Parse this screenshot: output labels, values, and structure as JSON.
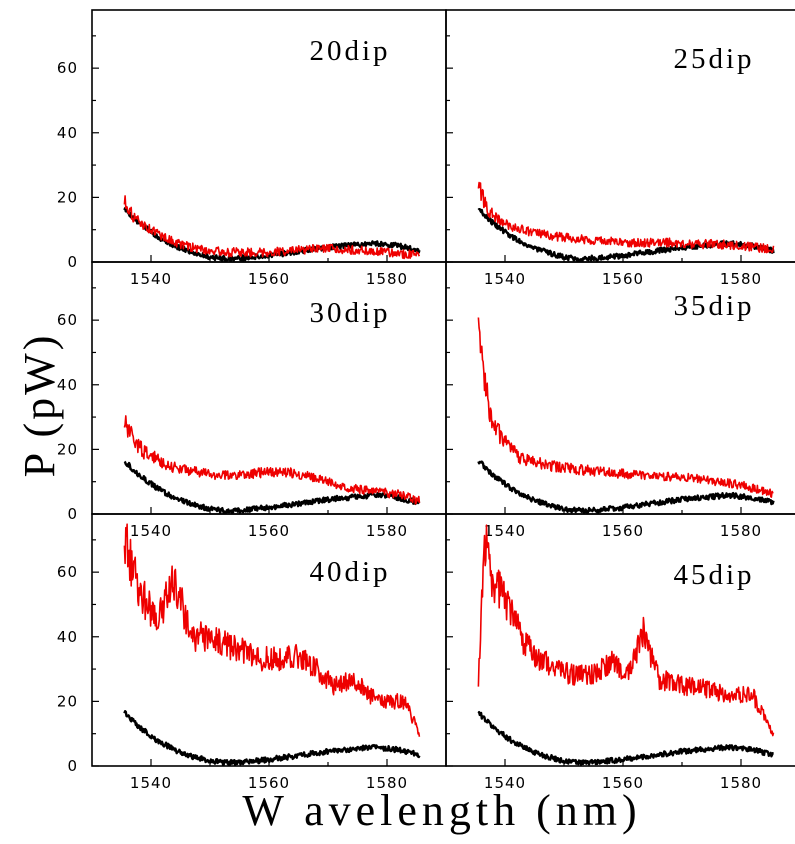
{
  "chart_data": {
    "type": "line",
    "layout": "3x2 panel grid",
    "xlabel": "W avelength (nm)",
    "ylabel": "P (pW)",
    "xlim": [
      1530,
      1590
    ],
    "ylim": [
      0,
      78
    ],
    "x_ticks": [
      1540,
      1560,
      1580
    ],
    "y_ticks": [
      0,
      20,
      40,
      60
    ],
    "grid": false,
    "colors": {
      "reference": "#000000",
      "measured": "#ee0000"
    },
    "panels": [
      {
        "label": "20dip",
        "series": [
          {
            "color": "#000000",
            "x": [
              1535.5,
              1538,
              1541,
              1544,
              1547,
              1550,
              1553,
              1556,
              1559,
              1562,
              1566,
              1570,
              1574,
              1578,
              1582,
              1585.5
            ],
            "y": [
              16.5,
              12,
              8,
              5,
              3,
              1.5,
              1,
              1.3,
              1.8,
              2.5,
              3.5,
              4.5,
              5.2,
              5.8,
              5,
              3.5
            ]
          },
          {
            "color": "#ee0000",
            "x": [
              1535.5,
              1537,
              1539,
              1541,
              1543,
              1545,
              1547,
              1550,
              1553,
              1556,
              1560,
              1564,
              1568,
              1572,
              1576,
              1580,
              1585.5
            ],
            "y": [
              19,
              14,
              11,
              9,
              7,
              5.5,
              4.5,
              3.5,
              3,
              3,
              3,
              3.5,
              4,
              4,
              3.5,
              3,
              2
            ]
          }
        ]
      },
      {
        "label": "25dip",
        "series": [
          {
            "color": "#000000",
            "x": [
              1535.5,
              1538,
              1541,
              1544,
              1547,
              1550,
              1553,
              1556,
              1559,
              1562,
              1566,
              1570,
              1574,
              1578,
              1582,
              1585.5
            ],
            "y": [
              16.5,
              12,
              8,
              5,
              3,
              1.5,
              1,
              1.3,
              1.8,
              2.5,
              3.5,
              4.5,
              5.2,
              5.8,
              5,
              3.5
            ]
          },
          {
            "color": "#ee0000",
            "x": [
              1535.5,
              1537,
              1539,
              1541,
              1543,
              1545,
              1548,
              1551,
              1554,
              1557,
              1560,
              1564,
              1568,
              1572,
              1576,
              1580,
              1585.5
            ],
            "y": [
              24,
              16,
              13,
              11,
              10,
              9,
              8,
              7.5,
              7,
              6.5,
              6,
              6,
              6,
              5.5,
              5.5,
              5,
              4
            ]
          }
        ]
      },
      {
        "label": "30dip",
        "series": [
          {
            "color": "#000000",
            "x": [
              1535.5,
              1538,
              1541,
              1544,
              1547,
              1550,
              1553,
              1556,
              1559,
              1562,
              1566,
              1570,
              1574,
              1578,
              1582,
              1585.5
            ],
            "y": [
              16.5,
              12,
              8,
              5,
              3,
              1.5,
              1,
              1.3,
              1.8,
              2.5,
              3.5,
              4.5,
              5.2,
              5.8,
              5,
              3.5
            ]
          },
          {
            "color": "#ee0000",
            "x": [
              1535.5,
              1537,
              1539,
              1541,
              1543,
              1545,
              1548,
              1551,
              1554,
              1557,
              1560,
              1563,
              1566,
              1570,
              1574,
              1578,
              1582,
              1585.5
            ],
            "y": [
              28,
              23,
              19,
              17,
              15,
              14,
              13,
              12,
              12,
              12.5,
              13,
              13,
              12,
              10,
              8,
              7,
              6,
              4
            ]
          }
        ]
      },
      {
        "label": "35dip",
        "series": [
          {
            "color": "#000000",
            "x": [
              1535.5,
              1538,
              1541,
              1544,
              1547,
              1550,
              1553,
              1556,
              1559,
              1562,
              1566,
              1570,
              1574,
              1578,
              1582,
              1585.5
            ],
            "y": [
              16.5,
              12,
              8,
              5,
              3,
              1.5,
              1,
              1.3,
              1.8,
              2.5,
              3.5,
              4.5,
              5.2,
              5.8,
              5,
              3.5
            ]
          },
          {
            "color": "#ee0000",
            "x": [
              1535.5,
              1536.5,
              1538,
              1540,
              1542,
              1545,
              1548,
              1551,
              1554,
              1557,
              1560,
              1564,
              1568,
              1572,
              1576,
              1580,
              1585.5
            ],
            "y": [
              63,
              40,
              28,
              22,
              18,
              16,
              15,
              14,
              13.5,
              13,
              12.5,
              12,
              11.5,
              11,
              10,
              9,
              6
            ]
          }
        ]
      },
      {
        "label": "40dip",
        "series": [
          {
            "color": "#000000",
            "x": [
              1535.5,
              1538,
              1541,
              1544,
              1547,
              1550,
              1553,
              1556,
              1559,
              1562,
              1566,
              1570,
              1574,
              1578,
              1582,
              1585.5
            ],
            "y": [
              16.5,
              12,
              8,
              5,
              3,
              1.5,
              1,
              1.3,
              1.8,
              2.5,
              3.5,
              4.5,
              5.2,
              5.8,
              5,
              3.5
            ]
          },
          {
            "color": "#ee0000",
            "x": [
              1535.5,
              1538,
              1541,
              1544,
              1547,
              1550,
              1553,
              1556,
              1559,
              1562,
              1565,
              1568,
              1571,
              1574,
              1577,
              1580,
              1583,
              1585.5
            ],
            "y": [
              70,
              55,
              45,
              57,
              40,
              40,
              37,
              35,
              33,
              33,
              34,
              30,
              25,
              27,
              22,
              20,
              20,
              10
            ]
          }
        ]
      },
      {
        "label": "45dip",
        "series": [
          {
            "color": "#000000",
            "x": [
              1535.5,
              1538,
              1541,
              1544,
              1547,
              1550,
              1553,
              1556,
              1559,
              1562,
              1566,
              1570,
              1574,
              1578,
              1582,
              1585.5
            ],
            "y": [
              16.5,
              12,
              8,
              5,
              3,
              1.5,
              1,
              1.3,
              1.8,
              2.5,
              3.5,
              4.5,
              5.2,
              5.8,
              5,
              3.5
            ]
          },
          {
            "color": "#ee0000",
            "x": [
              1535.5,
              1536.5,
              1537.5,
              1539,
              1541,
              1543,
              1546,
              1549,
              1552,
              1555,
              1558,
              1561,
              1563.5,
              1566,
              1570,
              1574,
              1578,
              1582,
              1585.5
            ],
            "y": [
              25,
              72,
              58,
              55,
              48,
              38,
              33,
              30,
              28,
              28,
              32,
              28,
              42,
              27,
              25,
              24,
              22,
              22,
              10
            ]
          }
        ]
      }
    ]
  }
}
